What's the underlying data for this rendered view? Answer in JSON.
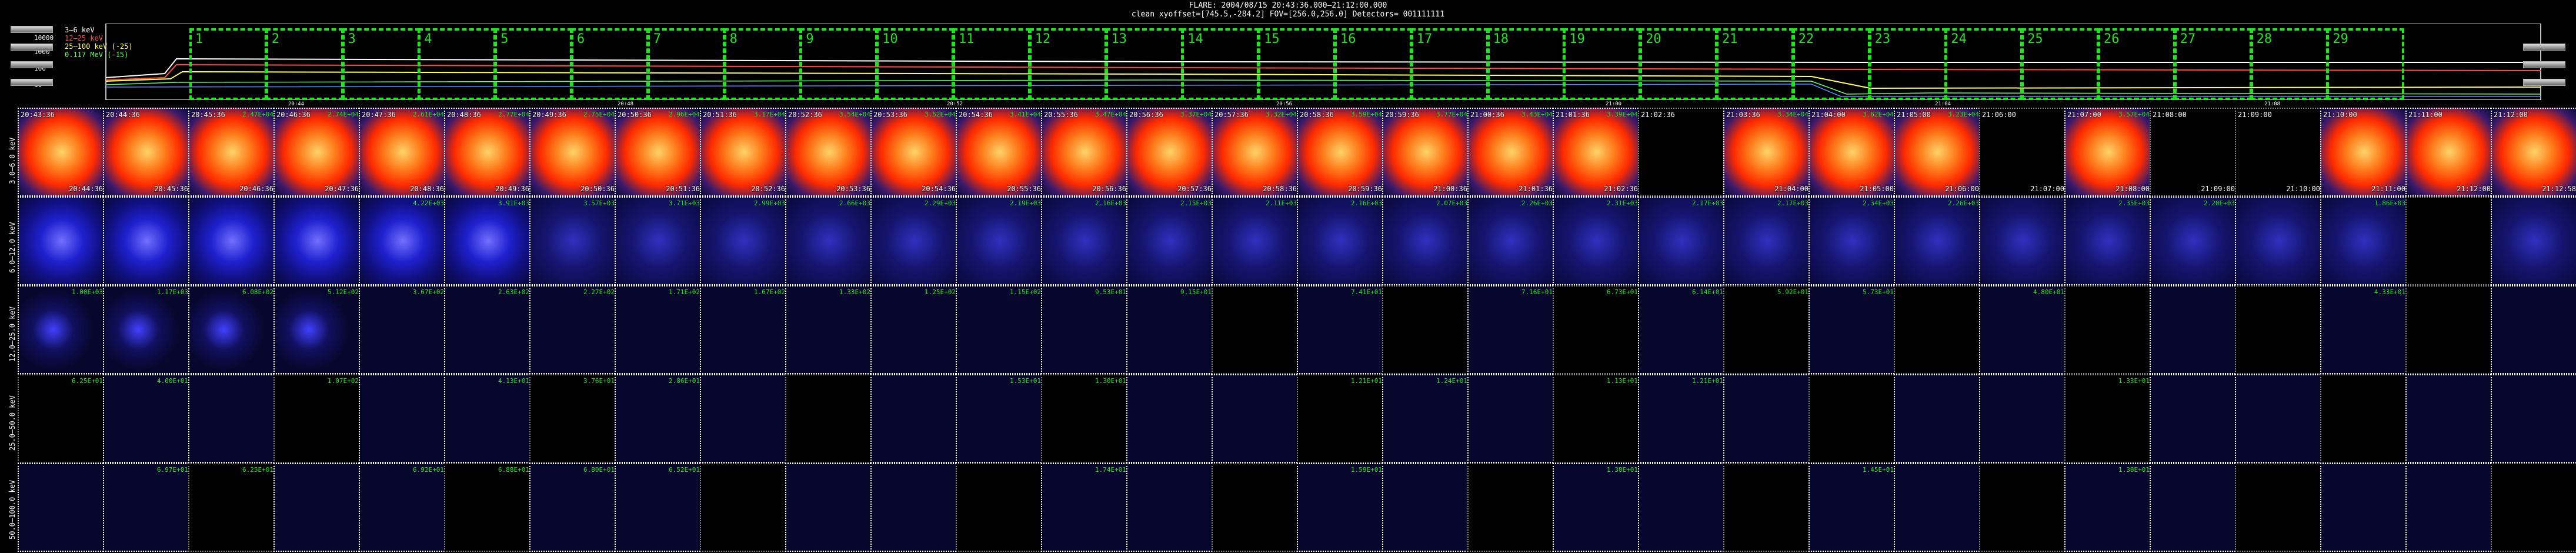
{
  "header": {
    "title": "FLARE: 2004/08/15 20:43:36.000–21:12:00.000",
    "subtitle": "clean   xyoffset=[745.5,-284.2]   FOV=[256.0,256.0]   Detectors= 001111111"
  },
  "lightcurve": {
    "legend": [
      {
        "label": "3–6 keV",
        "color": "#ffffff"
      },
      {
        "label": "12–25 keV",
        "color": "#ff4a4a"
      },
      {
        "label": "25–100 keV (-25)",
        "color": "#ffff55"
      },
      {
        "label": "0.117 MeV (-15)",
        "color": "#66ff66"
      }
    ],
    "yticks": [
      "10000",
      "1000",
      "100",
      "10"
    ],
    "xticks": [
      "20:44",
      "20:48",
      "20:52",
      "20:56",
      "21:00",
      "21:04",
      "21:08",
      "21:12"
    ],
    "intervals": [
      "1",
      "2",
      "3",
      "4",
      "5",
      "6",
      "7",
      "8",
      "9",
      "10",
      "11",
      "12",
      "13",
      "14",
      "15",
      "16",
      "17",
      "18",
      "19",
      "20",
      "21",
      "22",
      "23",
      "24",
      "25",
      "26",
      "27",
      "28",
      "29"
    ]
  },
  "bands": [
    "3.0–6.0 keV",
    "6.0–12.0 keV",
    "12.0–25.0 keV",
    "25.0–50.0 keV",
    "50.0–100.0 keV"
  ],
  "row1_times_tl": [
    "20:43:36",
    "20:44:36",
    "20:45:36",
    "20:46:36",
    "20:47:36",
    "20:48:36",
    "20:49:36",
    "20:50:36",
    "20:51:36",
    "20:52:36",
    "20:53:36",
    "20:54:36",
    "20:55:36",
    "20:56:36",
    "20:57:36",
    "20:58:36",
    "20:59:36",
    "21:00:36",
    "21:01:36",
    "21:02:36",
    "21:03:36",
    "21:04:00",
    "21:05:00",
    "21:06:00",
    "21:07:00",
    "21:08:00",
    "21:09:00",
    "21:10:00",
    "21:11:00",
    "21:12:00"
  ],
  "row1_times_br": [
    "20:44:36",
    "20:45:36",
    "20:46:36",
    "20:47:36",
    "20:48:36",
    "20:49:36",
    "20:50:36",
    "20:51:36",
    "20:52:36",
    "20:53:36",
    "20:54:36",
    "20:55:36",
    "20:56:36",
    "20:57:36",
    "20:58:36",
    "20:59:36",
    "21:00:36",
    "21:01:36",
    "21:02:36",
    "",
    "21:04:00",
    "21:05:00",
    "21:06:00",
    "21:07:00",
    "21:08:00",
    "21:09:00",
    "21:10:00",
    "21:11:00",
    "21:12:00",
    "21:12:58"
  ],
  "peaks": {
    "r1": [
      "",
      "",
      "2.47E+04",
      "2.74E+04",
      "2.61E+04",
      "2.77E+04",
      "2.75E+04",
      "2.96E+04",
      "3.17E+04",
      "3.54E+04",
      "3.62E+04",
      "3.41E+04",
      "3.47E+04",
      "3.37E+04",
      "3.32E+04",
      "3.59E+04",
      "3.77E+04",
      "3.43E+04",
      "3.39E+04",
      "",
      "3.34E+04",
      "3.62E+04",
      "3.23E+04",
      "",
      "3.57E+04",
      "",
      "",
      "",
      "",
      ""
    ],
    "r2": [
      "",
      "",
      "",
      "",
      "4.22E+03",
      "3.91E+03",
      "3.57E+03",
      "3.71E+03",
      "2.99E+03",
      "2.66E+03",
      "2.29E+03",
      "2.19E+03",
      "2.16E+03",
      "2.15E+03",
      "2.11E+03",
      "2.16E+03",
      "2.07E+03",
      "2.26E+03",
      "2.31E+03",
      "2.17E+03",
      "2.17E+03",
      "2.34E+03",
      "2.26E+03",
      "",
      "2.35E+03",
      "2.20E+03",
      "",
      "1.86E+03",
      "",
      ""
    ],
    "r3": [
      "1.00E+03",
      "1.17E+03",
      "6.08E+02",
      "5.12E+02",
      "3.67E+02",
      "2.63E+02",
      "2.27E+02",
      "1.71E+02",
      "1.67E+02",
      "1.33E+02",
      "1.25E+02",
      "1.15E+02",
      "9.53E+01",
      "9.15E+01",
      "",
      "7.41E+01",
      "",
      "7.16E+01",
      "6.73E+01",
      "6.14E+01",
      "5.92E+01",
      "5.73E+01",
      "",
      "4.80E+01",
      "",
      "",
      "",
      "4.33E+01",
      "",
      ""
    ],
    "r4": [
      "6.25E+01",
      "4.00E+01",
      "",
      "1.07E+02",
      "",
      "4.13E+01",
      "3.76E+01",
      "2.86E+01",
      "",
      "",
      "",
      "1.53E+01",
      "1.30E+01",
      "",
      "",
      "1.21E+01",
      "1.24E+01",
      "",
      "1.13E+01",
      "1.21E+01",
      "",
      "",
      "",
      "",
      "1.33E+01",
      "",
      "",
      "",
      "",
      ""
    ],
    "r5": [
      "",
      "6.97E+01",
      "6.25E+01",
      "",
      "6.92E+01",
      "6.88E+01",
      "6.80E+01",
      "6.52E+01",
      "",
      "",
      "",
      "",
      "1.74E+01",
      "",
      "",
      "1.59E+01",
      "",
      "",
      "1.38E+01",
      "",
      "",
      "1.45E+01",
      "",
      "",
      "1.38E+01",
      "",
      "",
      "",
      "",
      ""
    ]
  }
}
